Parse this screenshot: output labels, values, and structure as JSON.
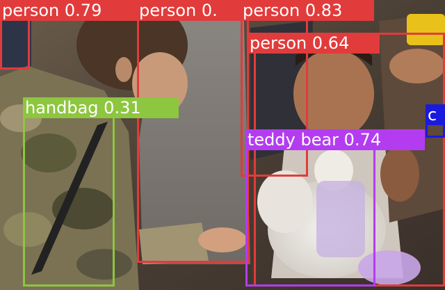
{
  "colors": {
    "person": "#e23b3b",
    "handbag": "#8dc63f",
    "teddy_bear": "#b43cf0",
    "partial": "#1a1adc"
  },
  "detections": [
    {
      "label": "person 0.79",
      "class": "person"
    },
    {
      "label": "person 0.",
      "class": "person"
    },
    {
      "label": "person 0.83",
      "class": "person"
    },
    {
      "label": "person 0.64",
      "class": "person"
    },
    {
      "label": "handbag 0.31",
      "class": "handbag"
    },
    {
      "label": "teddy bear 0.74",
      "class": "teddy_bear"
    },
    {
      "label": "c",
      "class": "partial"
    }
  ]
}
